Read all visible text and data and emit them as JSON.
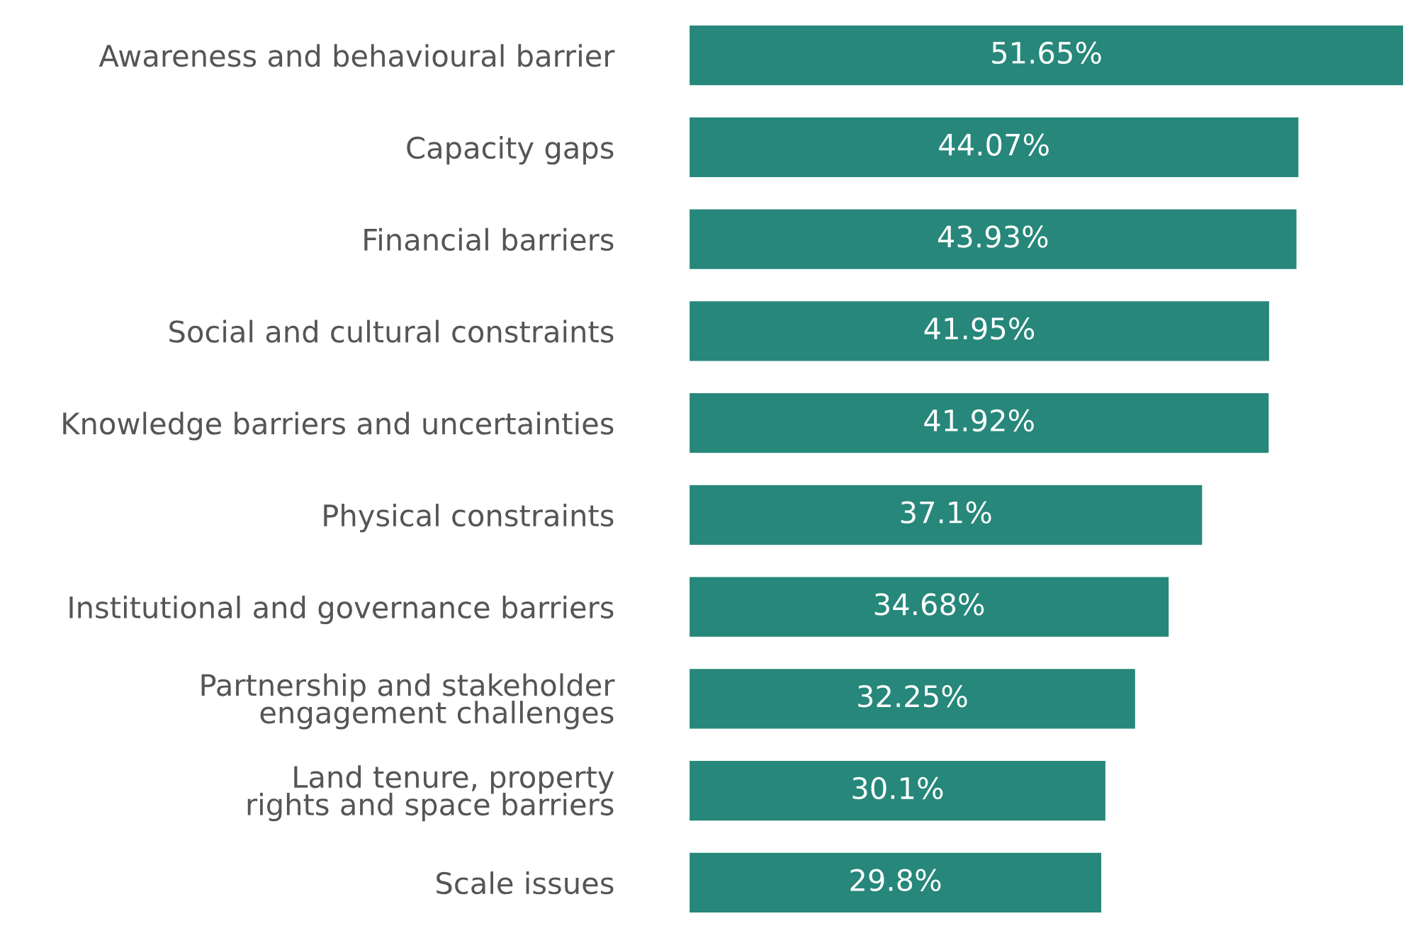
{
  "chart_data": {
    "type": "bar",
    "orientation": "horizontal",
    "grid": false,
    "legend": false,
    "categories": [
      "Awareness and behavioural barrier",
      "Capacity gaps",
      "Financial barriers",
      "Social and cultural constraints",
      "Knowledge barriers and uncertainties",
      "Physical constraints",
      "Institutional and governance barriers",
      "Partnership and stakeholder\nengagement challenges",
      "Land tenure, property\nrights and space barriers",
      "Scale issues"
    ],
    "values": [
      51.65,
      44.07,
      43.93,
      41.95,
      41.92,
      37.1,
      34.68,
      32.25,
      30.1,
      29.8
    ],
    "value_labels": [
      "51.65%",
      "44.07%",
      "43.93%",
      "41.95%",
      "41.92%",
      "37.1%",
      "34.68%",
      "32.25%",
      "30.1%",
      "29.8%"
    ],
    "color": "#26877a"
  }
}
